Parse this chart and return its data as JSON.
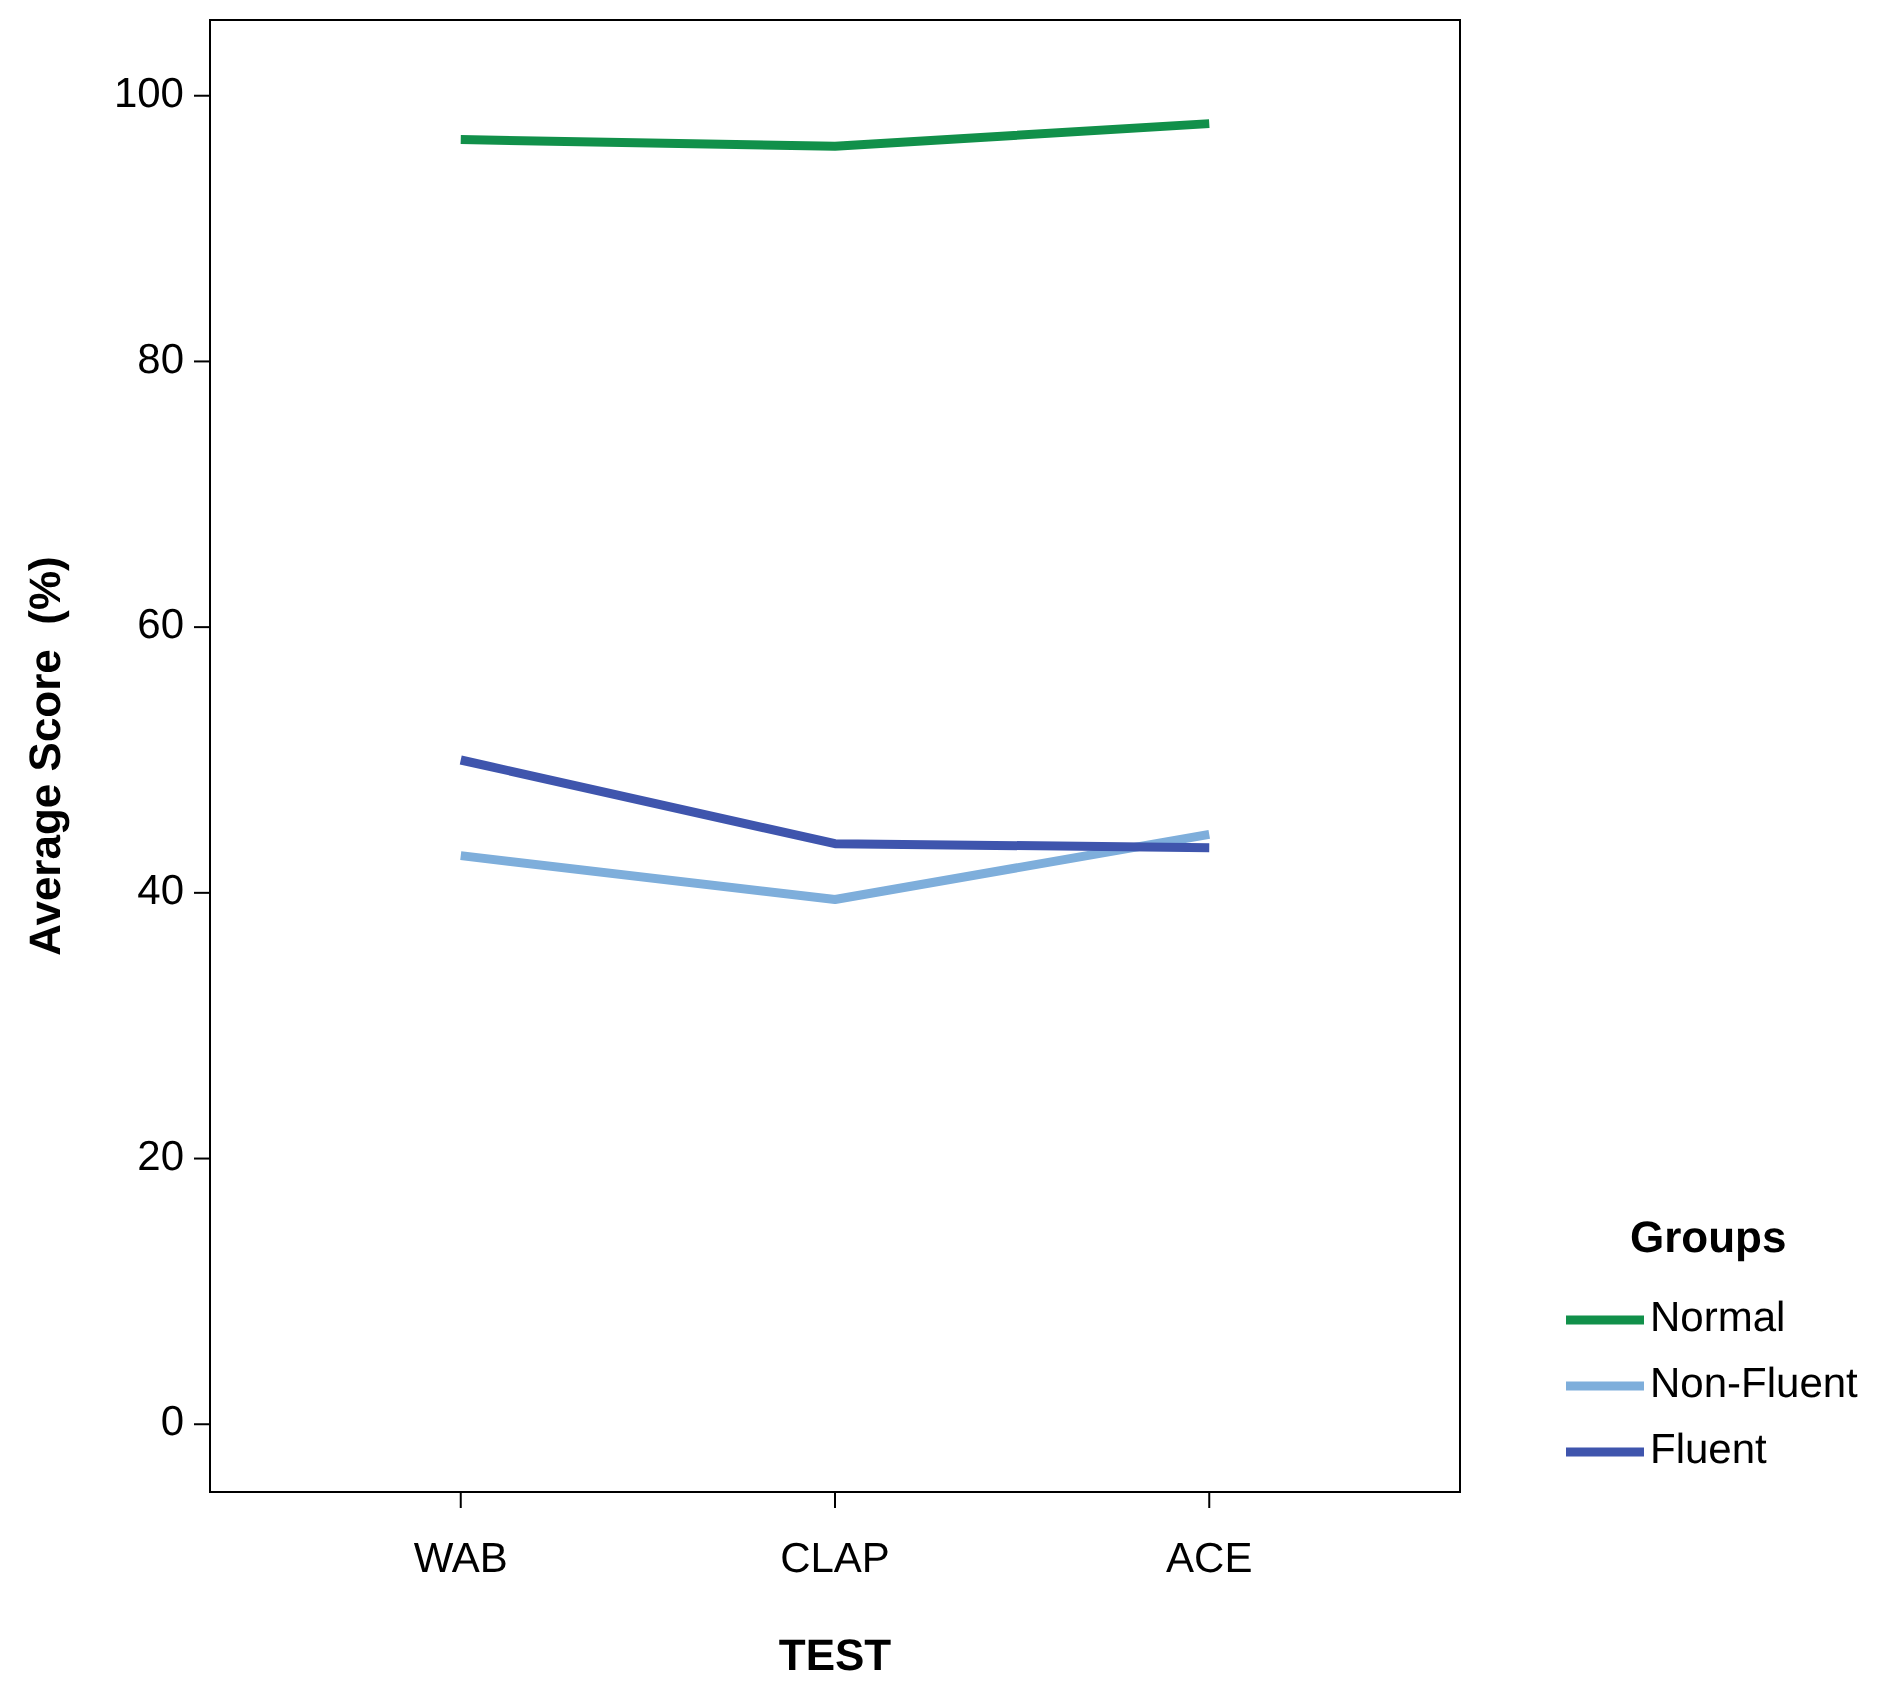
{
  "chart_data": {
    "type": "line",
    "xlabel": "TEST",
    "ylabel": "Average Score  (%)",
    "legend_title": "Groups",
    "legend": "right",
    "grid": false,
    "categories": [
      "WAB",
      "CLAP",
      "ACE"
    ],
    "series": [
      {
        "name": "Normal",
        "color": "#11904a",
        "values": [
          96.7,
          96.2,
          97.9
        ]
      },
      {
        "name": "Non-Fluent",
        "color": "#7eaedb",
        "values": [
          42.8,
          39.5,
          44.4
        ]
      },
      {
        "name": "Fluent",
        "color": "#3f55ad",
        "values": [
          50.0,
          43.7,
          43.4
        ]
      }
    ],
    "ylim": [
      -5.1,
      105.7
    ],
    "yticks": [
      0,
      20,
      40,
      60,
      80,
      100
    ]
  }
}
